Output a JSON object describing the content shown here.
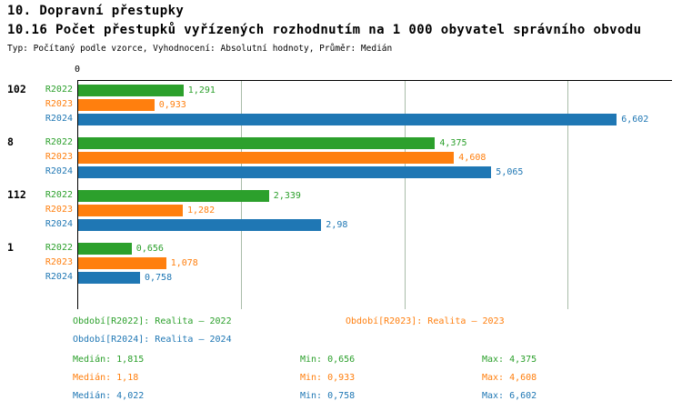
{
  "title": "10. Dopravní přestupky",
  "subtitle": "10.16 Počet přestupků vyřízených rozhodnutím na 1 000 obyvatel správního obvodu",
  "meta": "Typ: Počítaný podle vzorce, Vyhodnocení: Absolutní hodnoty, Průměr: Medián",
  "chart_data": {
    "type": "bar",
    "orientation": "horizontal",
    "x_axis": {
      "origin_label": "0",
      "min": 0,
      "max": 7.28,
      "gridlines": [
        2,
        4,
        6
      ]
    },
    "series_colors": {
      "R2022": "#2ca02c",
      "R2023": "#ff7f0e",
      "R2024": "#1f77b4"
    },
    "groups": [
      {
        "label": "102",
        "bars": [
          {
            "series": "R2022",
            "value": 1.291,
            "value_label": "1,291"
          },
          {
            "series": "R2023",
            "value": 0.933,
            "value_label": "0,933"
          },
          {
            "series": "R2024",
            "value": 6.602,
            "value_label": "6,602"
          }
        ]
      },
      {
        "label": "8",
        "bars": [
          {
            "series": "R2022",
            "value": 4.375,
            "value_label": "4,375"
          },
          {
            "series": "R2023",
            "value": 4.608,
            "value_label": "4,608"
          },
          {
            "series": "R2024",
            "value": 5.065,
            "value_label": "5,065"
          }
        ]
      },
      {
        "label": "112",
        "bars": [
          {
            "series": "R2022",
            "value": 2.339,
            "value_label": "2,339"
          },
          {
            "series": "R2023",
            "value": 1.282,
            "value_label": "1,282"
          },
          {
            "series": "R2024",
            "value": 2.98,
            "value_label": "2,98"
          }
        ]
      },
      {
        "label": "1",
        "bars": [
          {
            "series": "R2022",
            "value": 0.656,
            "value_label": "0,656"
          },
          {
            "series": "R2023",
            "value": 1.078,
            "value_label": "1,078"
          },
          {
            "series": "R2024",
            "value": 0.758,
            "value_label": "0,758"
          }
        ]
      }
    ]
  },
  "legend": [
    {
      "series": "R2022",
      "label": "Období[R2022]: Realita – 2022"
    },
    {
      "series": "R2023",
      "label": "Období[R2023]: Realita – 2023"
    },
    {
      "series": "R2024",
      "label": "Období[R2024]: Realita – 2024"
    }
  ],
  "stats": [
    {
      "series": "R2022",
      "median": "Medián: 1,815",
      "min": "Min: 0,656",
      "max": "Max: 4,375"
    },
    {
      "series": "R2023",
      "median": "Medián: 1,18",
      "min": "Min: 0,933",
      "max": "Max: 4,608"
    },
    {
      "series": "R2024",
      "median": "Medián: 4,022",
      "min": "Min: 0,758",
      "max": "Max: 6,602"
    }
  ]
}
